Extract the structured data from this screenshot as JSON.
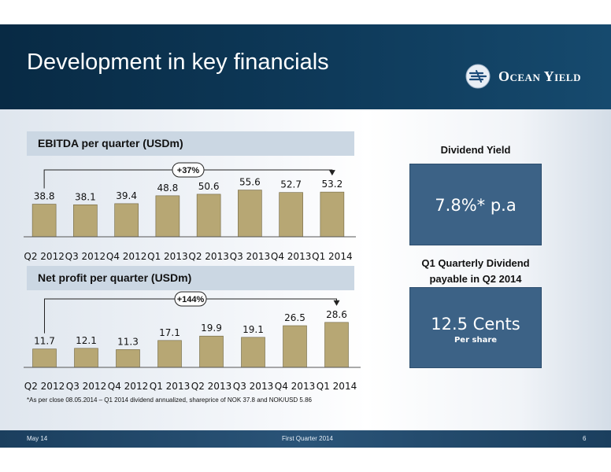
{
  "header": {
    "title": "Development in key financials",
    "logo_text": "Ocean Yield"
  },
  "ebitda": {
    "section_title": "EBITDA per quarter (USDm)",
    "growth_label": "+37%"
  },
  "net_profit": {
    "section_title": "Net profit per quarter (USDm)",
    "growth_label": "+144%"
  },
  "dividend_yield": {
    "label": "Dividend Yield",
    "value": "7.8%* p.a"
  },
  "quarterly_dividend": {
    "label": "Q1 Quarterly Dividend payable  in Q2 2014",
    "value": "12.5 Cents",
    "sub": "Per share"
  },
  "footnote": "*As per close 08.05.2014 – Q1 2014 dividend annualized, shareprice of NOK 37.8  and NOK/USD 5.86",
  "footer": {
    "date": "May 14",
    "center": "First Quarter 2014",
    "page": "6"
  },
  "colors": {
    "bar": "#b7a774",
    "header": "#0e3a5a",
    "panel": "#3c6286"
  },
  "chart_data": [
    {
      "type": "bar",
      "title": "EBITDA per quarter (USDm)",
      "categories": [
        "Q2 2012",
        "Q3 2012",
        "Q4 2012",
        "Q1 2013",
        "Q2 2013",
        "Q3 2013",
        "Q4 2013",
        "Q1 2014"
      ],
      "values": [
        38.8,
        38.1,
        39.4,
        48.8,
        50.6,
        55.6,
        52.7,
        53.2
      ],
      "value_labels": [
        "38.8",
        "38.1",
        "39.4",
        "48.8",
        "50.6",
        "55.6",
        "52.7",
        "53.2"
      ],
      "annotation": "+37%",
      "xlabel": "",
      "ylabel": "",
      "ylim": [
        0,
        58
      ],
      "grid": false,
      "legend": "none"
    },
    {
      "type": "bar",
      "title": "Net profit per quarter (USDm)",
      "categories": [
        "Q2 2012",
        "Q3 2012",
        "Q4 2012",
        "Q1 2013",
        "Q2 2013",
        "Q3 2013",
        "Q4 2013",
        "Q1 2014"
      ],
      "values": [
        11.7,
        12.1,
        11.3,
        17.1,
        19.9,
        19.1,
        26.5,
        28.6
      ],
      "value_labels": [
        "11.7",
        "12.1",
        "11.3",
        "17.1",
        "19.9",
        "19.1",
        "26.5",
        "28.6"
      ],
      "annotation": "+144%",
      "xlabel": "",
      "ylabel": "",
      "ylim": [
        0,
        30
      ],
      "grid": false,
      "legend": "none"
    }
  ]
}
